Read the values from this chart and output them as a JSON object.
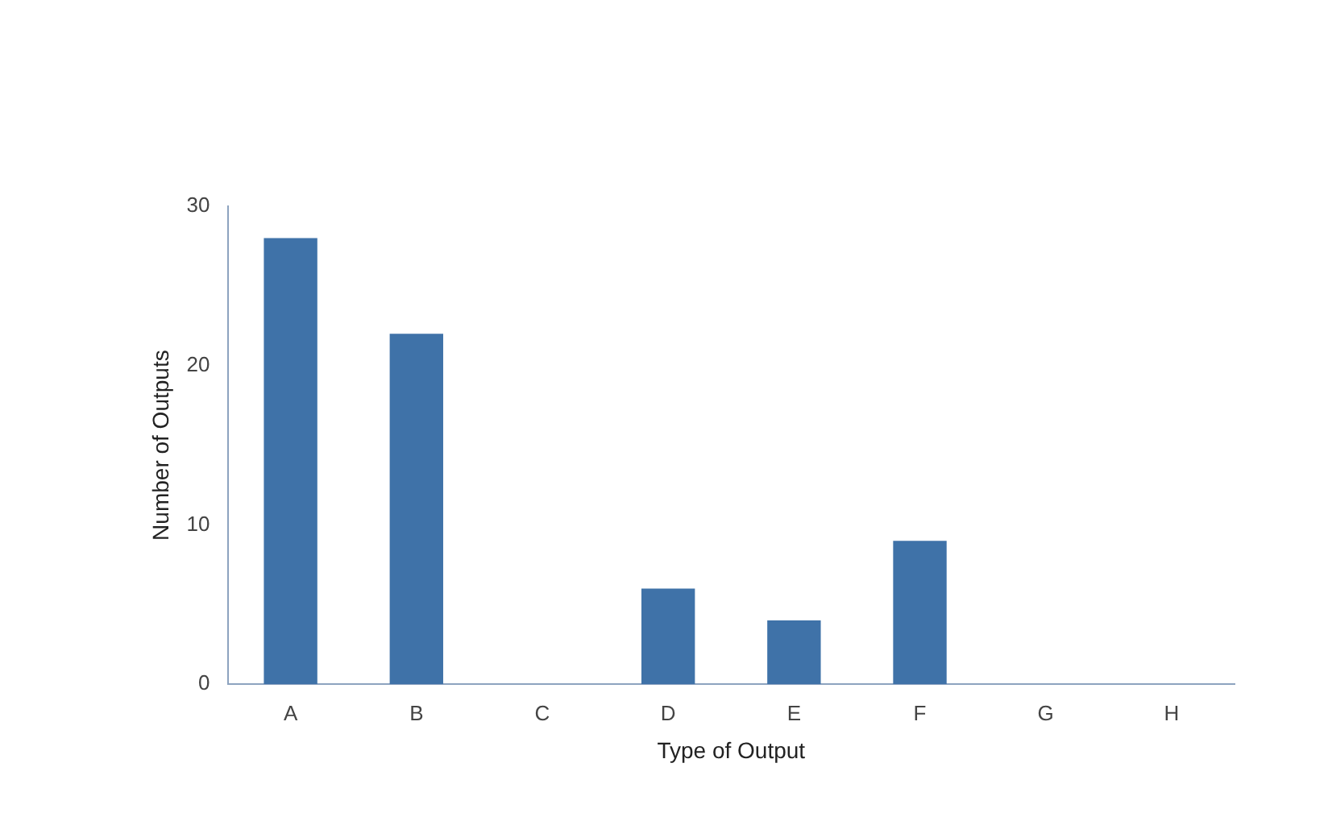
{
  "chart_data": {
    "type": "bar",
    "xlabel": "Type of Output",
    "ylabel": "Number of Outputs",
    "categories": [
      "A",
      "B",
      "C",
      "D",
      "E",
      "F",
      "G",
      "H"
    ],
    "values": [
      28,
      22,
      0,
      6,
      4,
      9,
      0,
      0
    ],
    "color": "#3f72a8",
    "ylim": [
      0,
      30
    ],
    "yticks": [
      0,
      10,
      20,
      30
    ],
    "grid": false,
    "legend": false
  }
}
